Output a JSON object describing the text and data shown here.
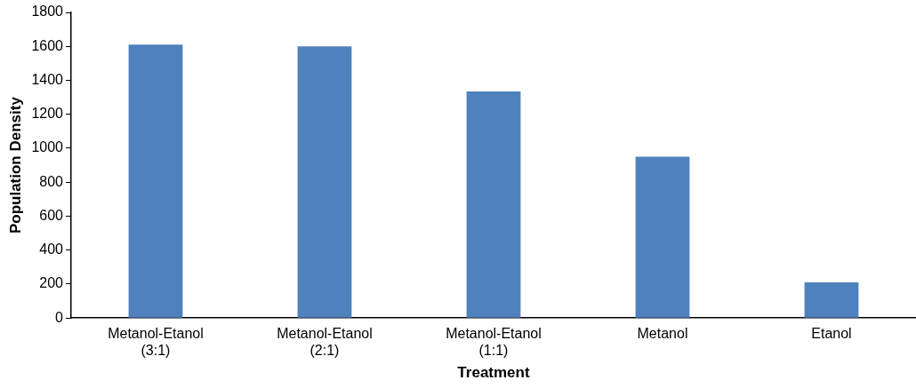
{
  "chart_data": {
    "type": "bar",
    "xlabel": "Treatment",
    "ylabel": "Population Density",
    "categories": [
      "Metanol-Etanol (3:1)",
      "Metanol-Etanol (2:1)",
      "Metanol-Etanol (1:1)",
      "Metanol",
      "Etanol"
    ],
    "values": [
      1610,
      1600,
      1335,
      950,
      210
    ],
    "color": "#4f81bd",
    "ylim": [
      0,
      1800
    ],
    "yticks": [
      0,
      200,
      400,
      600,
      800,
      1000,
      1200,
      1400,
      1600,
      1800
    ],
    "grid": false,
    "legend": false
  }
}
